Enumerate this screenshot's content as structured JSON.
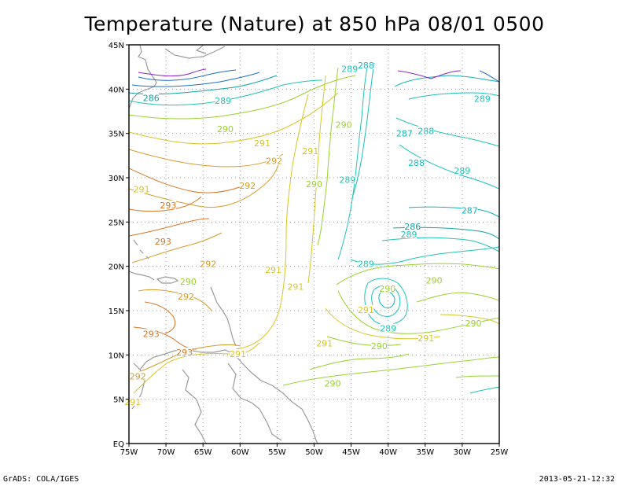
{
  "title": "Temperature (Nature) at 850 hPa 08/01 0500",
  "footer": {
    "credit": "GrADS: COLA/IGES",
    "timestamp": "2013-05-21-12:32"
  },
  "axes": {
    "lon_labels": [
      "75W",
      "70W",
      "65W",
      "60W",
      "55W",
      "50W",
      "45W",
      "40W",
      "35W",
      "30W",
      "25W"
    ],
    "lat_labels": [
      "45N",
      "40N",
      "35N",
      "30N",
      "25N",
      "20N",
      "15N",
      "10N",
      "5N",
      "EQ"
    ],
    "lon_range_deg": [
      -75,
      -25
    ],
    "lat_range_deg": [
      0,
      45
    ],
    "grid": "dotted"
  },
  "colors": {
    "286": "#11a3a8",
    "287": "#11b5b5",
    "288": "#1bc0bc",
    "289": "#20c4b4",
    "290": "#99d22f",
    "291": "#d7c623",
    "292": "#d69c2a",
    "293": "#d67828",
    "land": "#9a9a9a",
    "cold": "#8c26c4",
    "cold2": "#2070c8"
  },
  "contour_labels": [
    {
      "text": "286",
      "lon": -72.0,
      "lat": 39.0,
      "level": "286"
    },
    {
      "text": "289",
      "lon": -62.3,
      "lat": 38.7,
      "level": "289"
    },
    {
      "text": "290",
      "lon": -62.0,
      "lat": 35.5,
      "level": "290"
    },
    {
      "text": "289",
      "lon": -45.2,
      "lat": 42.3,
      "level": "289"
    },
    {
      "text": "288",
      "lon": -43.0,
      "lat": 42.7,
      "level": "288"
    },
    {
      "text": "289",
      "lon": -27.3,
      "lat": 38.9,
      "level": "289"
    },
    {
      "text": "290",
      "lon": -46.0,
      "lat": 36.0,
      "level": "290"
    },
    {
      "text": "287",
      "lon": -37.8,
      "lat": 35.0,
      "level": "287"
    },
    {
      "text": "288",
      "lon": -34.9,
      "lat": 35.3,
      "level": "288"
    },
    {
      "text": "291",
      "lon": -57.0,
      "lat": 33.9,
      "level": "291"
    },
    {
      "text": "292",
      "lon": -55.4,
      "lat": 31.9,
      "level": "292"
    },
    {
      "text": "291",
      "lon": -50.5,
      "lat": 33.0,
      "level": "291"
    },
    {
      "text": "288",
      "lon": -36.2,
      "lat": 31.7,
      "level": "288"
    },
    {
      "text": "289",
      "lon": -30.0,
      "lat": 30.8,
      "level": "289"
    },
    {
      "text": "291",
      "lon": -73.3,
      "lat": 28.7,
      "level": "291"
    },
    {
      "text": "292",
      "lon": -59.0,
      "lat": 29.1,
      "level": "292"
    },
    {
      "text": "290",
      "lon": -50.0,
      "lat": 29.3,
      "level": "290"
    },
    {
      "text": "289",
      "lon": -45.5,
      "lat": 29.8,
      "level": "289"
    },
    {
      "text": "293",
      "lon": -69.7,
      "lat": 26.9,
      "level": "293"
    },
    {
      "text": "287",
      "lon": -29.0,
      "lat": 26.3,
      "level": "287"
    },
    {
      "text": "286",
      "lon": -36.7,
      "lat": 24.5,
      "level": "286"
    },
    {
      "text": "289",
      "lon": -37.2,
      "lat": 23.6,
      "level": "289"
    },
    {
      "text": "293",
      "lon": -70.4,
      "lat": 22.8,
      "level": "293"
    },
    {
      "text": "292",
      "lon": -64.3,
      "lat": 20.3,
      "level": "292"
    },
    {
      "text": "289",
      "lon": -43.0,
      "lat": 20.3,
      "level": "289"
    },
    {
      "text": "291",
      "lon": -55.5,
      "lat": 19.6,
      "level": "291"
    },
    {
      "text": "290",
      "lon": -67.0,
      "lat": 18.3,
      "level": "290"
    },
    {
      "text": "290",
      "lon": -33.8,
      "lat": 18.4,
      "level": "290"
    },
    {
      "text": "290",
      "lon": -40.1,
      "lat": 17.5,
      "level": "290"
    },
    {
      "text": "291",
      "lon": -52.5,
      "lat": 17.7,
      "level": "291"
    },
    {
      "text": "292",
      "lon": -67.3,
      "lat": 16.6,
      "level": "292"
    },
    {
      "text": "291",
      "lon": -43.0,
      "lat": 15.1,
      "level": "291"
    },
    {
      "text": "290",
      "lon": -28.5,
      "lat": 13.6,
      "level": "290"
    },
    {
      "text": "289",
      "lon": -40.0,
      "lat": 13.0,
      "level": "289"
    },
    {
      "text": "293",
      "lon": -72.0,
      "lat": 12.4,
      "level": "293"
    },
    {
      "text": "291",
      "lon": -34.9,
      "lat": 11.9,
      "level": "291"
    },
    {
      "text": "291",
      "lon": -48.6,
      "lat": 11.3,
      "level": "291"
    },
    {
      "text": "290",
      "lon": -41.2,
      "lat": 11.0,
      "level": "290"
    },
    {
      "text": "293",
      "lon": -67.5,
      "lat": 10.3,
      "level": "293"
    },
    {
      "text": "291",
      "lon": -60.3,
      "lat": 10.1,
      "level": "291"
    },
    {
      "text": "292",
      "lon": -73.8,
      "lat": 7.6,
      "level": "292"
    },
    {
      "text": "290",
      "lon": -47.5,
      "lat": 6.8,
      "level": "290"
    },
    {
      "text": "291",
      "lon": -74.5,
      "lat": 4.7,
      "level": "291"
    }
  ]
}
